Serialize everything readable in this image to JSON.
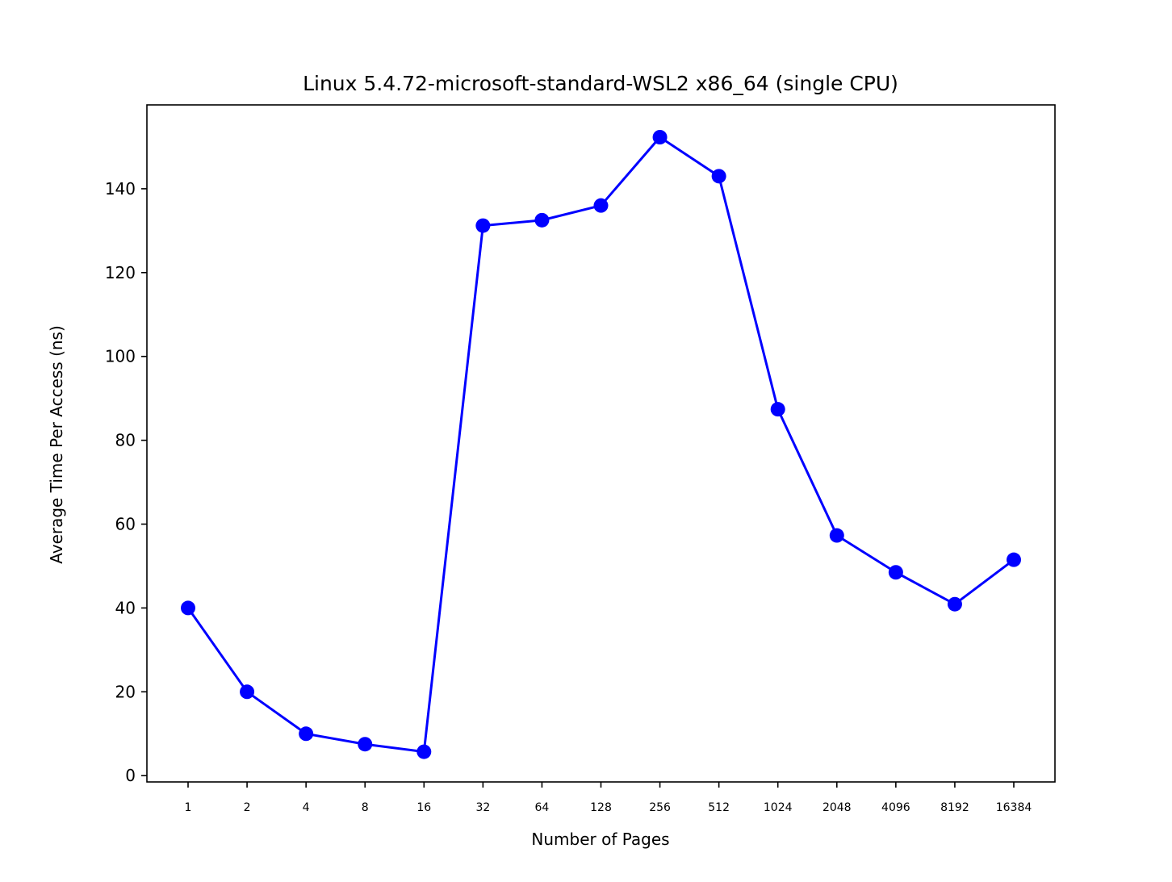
{
  "chart_data": {
    "type": "line",
    "title": "Linux 5.4.72-microsoft-standard-WSL2 x86_64 (single CPU)",
    "xlabel": "Number of Pages",
    "ylabel": "Average Time Per Access (ns)",
    "categories": [
      "1",
      "2",
      "4",
      "8",
      "16",
      "32",
      "64",
      "128",
      "256",
      "512",
      "1024",
      "2048",
      "4096",
      "8192",
      "16384"
    ],
    "series": [
      {
        "values": [
          40.0,
          20.0,
          10.0,
          7.5,
          5.7,
          131.2,
          132.5,
          136.0,
          152.3,
          143.0,
          87.4,
          57.3,
          48.5,
          40.9,
          51.5
        ],
        "color": "#0000ff",
        "marker": "circle"
      }
    ],
    "ylim": [
      -1.5,
      160
    ],
    "yticks": [
      0,
      20,
      40,
      60,
      80,
      100,
      120,
      140
    ],
    "grid": false,
    "legend": "none"
  }
}
